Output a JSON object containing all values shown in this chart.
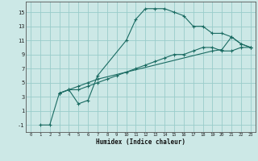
{
  "xlabel": "Humidex (Indice chaleur)",
  "bg_color": "#cce8e6",
  "grid_color": "#99ccca",
  "line_color": "#1a6b62",
  "xlim": [
    -0.5,
    23.5
  ],
  "ylim": [
    -2,
    16.5
  ],
  "xticks": [
    0,
    1,
    2,
    3,
    4,
    5,
    6,
    7,
    8,
    9,
    10,
    11,
    12,
    13,
    14,
    15,
    16,
    17,
    18,
    19,
    20,
    21,
    22,
    23
  ],
  "yticks": [
    -1,
    1,
    3,
    5,
    7,
    9,
    11,
    13,
    15
  ],
  "series": [
    {
      "x": [
        1,
        2,
        3,
        4,
        5,
        6,
        7,
        10,
        11,
        12,
        13,
        14,
        15,
        16,
        17,
        18,
        19,
        20,
        21,
        22,
        23
      ],
      "y": [
        -1,
        -1,
        3.5,
        4,
        2,
        2.5,
        6,
        11,
        14,
        15.5,
        15.5,
        15.5,
        15,
        14.5,
        13,
        13,
        12,
        12,
        11.5,
        10.5,
        10
      ]
    },
    {
      "x": [
        3,
        4,
        5,
        6,
        7,
        19,
        20,
        21,
        22,
        23
      ],
      "y": [
        3.5,
        4,
        4.5,
        5,
        5.5,
        9.5,
        9.7,
        11.5,
        10.5,
        10
      ]
    },
    {
      "x": [
        3,
        4,
        5,
        6,
        7,
        8,
        9,
        10,
        11,
        12,
        13,
        14,
        15,
        16,
        17,
        18,
        19,
        20,
        21,
        22,
        23
      ],
      "y": [
        3.5,
        4,
        4,
        4.5,
        5,
        5.5,
        6,
        6.5,
        7,
        7.5,
        8,
        8.5,
        9,
        9,
        9.5,
        10,
        10,
        9.5,
        9.5,
        10,
        10
      ]
    }
  ]
}
